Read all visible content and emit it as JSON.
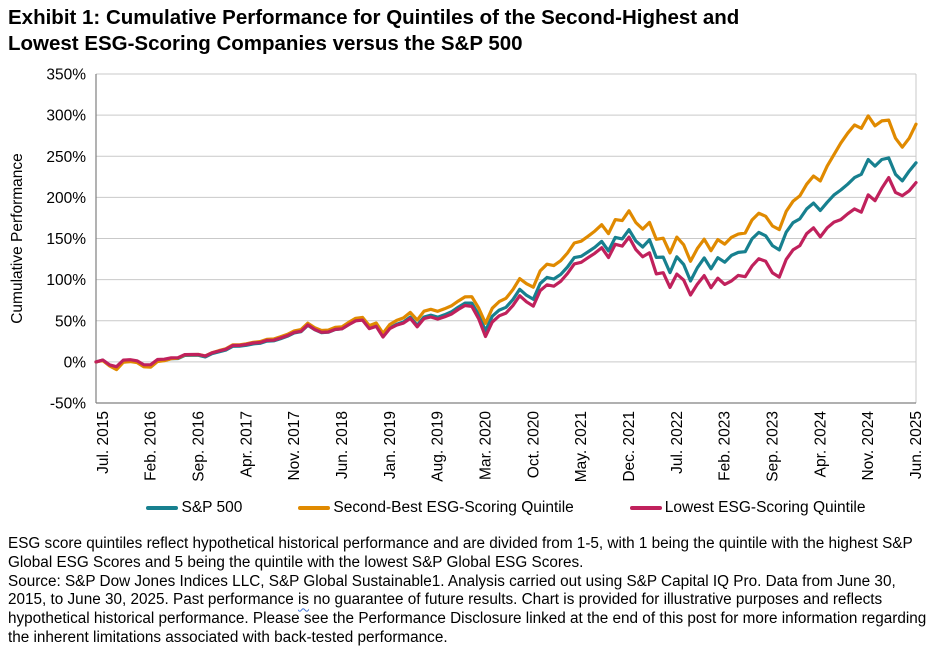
{
  "title": {
    "line1": "Exhibit 1: Cumulative Performance for Quintiles of the Second-Highest and",
    "line2": "Lowest ESG-Scoring Companies versus the S&P 500"
  },
  "chart_data": {
    "type": "line",
    "title": "Exhibit 1: Cumulative Performance for Quintiles of the Second-Highest and Lowest ESG-Scoring Companies versus the S&P 500",
    "xlabel": "",
    "ylabel": "Cumulative Performance",
    "ylim": [
      -50,
      350
    ],
    "y_tick_step": 50,
    "y_tick_labels": [
      "350%",
      "300%",
      "250%",
      "200%",
      "150%",
      "100%",
      "50%",
      "0%",
      "-50%"
    ],
    "x_frequency": "monthly",
    "x_range": "Jun. 2015 to Jun. 2025",
    "x_tick_month_indices": [
      1,
      8,
      15,
      22,
      29,
      36,
      43,
      50,
      57,
      64,
      71,
      78,
      85,
      92,
      99,
      106,
      113,
      120
    ],
    "x_tick_labels": [
      "Jul. 2015",
      "Feb. 2016",
      "Sep. 2016",
      "Apr. 2017",
      "Nov. 2017",
      "Jun. 2018",
      "Jan. 2019",
      "Aug. 2019",
      "Mar. 2020",
      "Oct. 2020",
      "May. 2021",
      "Dec. 2021",
      "Jul. 2022",
      "Feb. 2023",
      "Sep. 2023",
      "Apr. 2024",
      "Nov. 2024",
      "Jun. 2025"
    ],
    "grid": "horizontal",
    "legend_position": "bottom",
    "series": [
      {
        "name": "S&P 500",
        "color": "#17808F",
        "values": [
          0,
          2.1,
          -4,
          -6.4,
          1.5,
          1.8,
          0.2,
          -4.8,
          -4.9,
          1.5,
          1.9,
          3.8,
          4.1,
          7.9,
          8,
          8,
          6.1,
          10,
          12.2,
          14.3,
          18.9,
          19,
          20.2,
          21.9,
          22.6,
          25.2,
          25.6,
          28.2,
          31.1,
          35.2,
          36.7,
          44.5,
          39.1,
          35.6,
          36.1,
          39.4,
          40.2,
          45.4,
          50.2,
          51.1,
          40.8,
          43.6,
          30.7,
          41.2,
          45.7,
          48.5,
          54.4,
          44.5,
          54.6,
          56.8,
          54.3,
          57.2,
          60.7,
          66.5,
          71.5,
          71.5,
          57.4,
          37.9,
          55.5,
          63,
          66.3,
          75.6,
          88.2,
          81,
          76.1,
          95.3,
          102.7,
          100.7,
          106.3,
          115.4,
          126.8,
          128.4,
          133.7,
          139.3,
          146.5,
          134.9,
          151.3,
          149.5,
          160.7,
          147.1,
          139.7,
          148.6,
          127,
          127.4,
          108.5,
          127.7,
          118.4,
          98.3,
          114.4,
          126.4,
          113.2,
          126.7,
          121.2,
          129.4,
          133.1,
          134,
          149.5,
          157.4,
          153.3,
          141.2,
          136.1,
          157.6,
          169.2,
          173.8,
          186,
          193,
          184,
          194,
          203,
          209,
          216,
          224,
          228,
          246,
          238,
          246,
          248,
          228,
          220,
          232,
          242
        ]
      },
      {
        "name": "Second-Best ESG-Scoring Quintile",
        "color": "#E08A00",
        "values": [
          0,
          1.6,
          -5,
          -9.4,
          -0.5,
          0.3,
          -0.8,
          -6,
          -6.4,
          0.5,
          1.4,
          3.8,
          4.6,
          8.6,
          8.8,
          9,
          7.3,
          11.3,
          13.7,
          15.9,
          20.6,
          20.8,
          22,
          23.8,
          24.6,
          27.3,
          27.8,
          30.5,
          33.4,
          37.6,
          39.2,
          47,
          41.6,
          38.1,
          38.6,
          41.9,
          42.7,
          48.1,
          53,
          54.1,
          44.1,
          47.3,
          34.7,
          45.5,
          50.4,
          53.5,
          60.1,
          50.8,
          61.6,
          63.9,
          61.5,
          64.5,
          68,
          73.9,
          79,
          79.3,
          65.4,
          46.9,
          65.2,
          73.3,
          77.3,
          87.6,
          101.2,
          95,
          90.8,
          110.6,
          118.7,
          117,
          123,
          132.4,
          144.5,
          146.7,
          152.7,
          159,
          166.8,
          155.9,
          173,
          171.8,
          183.7,
          169.4,
          161.4,
          169.6,
          149,
          150.4,
          132.5,
          151.7,
          142.4,
          122.3,
          137.7,
          149.1,
          135.2,
          148.7,
          143.2,
          151.4,
          155.4,
          156.7,
          172.5,
          180.7,
          177,
          165.2,
          160.8,
          182.9,
          195.2,
          201.8,
          216,
          226,
          220,
          238,
          252,
          266,
          278,
          288,
          284,
          299,
          287,
          293,
          294,
          272,
          261,
          272,
          289
        ]
      },
      {
        "name": "Lowest ESG-Scoring Quintile",
        "color": "#C0215C",
        "values": [
          0,
          2.3,
          -3.7,
          -5.9,
          2.2,
          2.7,
          1.3,
          -3.5,
          -3.4,
          2.9,
          3.2,
          4.9,
          5.1,
          8.9,
          9,
          9,
          7.1,
          11,
          13.2,
          15.3,
          19.9,
          20,
          21.2,
          22.9,
          23.6,
          26.1,
          26.4,
          29,
          31.8,
          35.8,
          37.2,
          44.9,
          39.4,
          35.9,
          36.3,
          39.5,
          40.2,
          45.3,
          50,
          50.8,
          40.5,
          43.2,
          30.2,
          40.4,
          44.7,
          47.2,
          52.9,
          42.7,
          52.6,
          54.6,
          52,
          54.7,
          58,
          63.7,
          68.5,
          67.5,
          52.4,
          30.9,
          48.5,
          56,
          59.3,
          68.3,
          80.5,
          73,
          67.8,
          86.6,
          93.7,
          92,
          98,
          107.4,
          119.1,
          121.1,
          126.7,
          132,
          138.8,
          126.9,
          143,
          140.8,
          151.7,
          136.6,
          127.7,
          132.6,
          107,
          108.4,
          90.5,
          106.7,
          99.4,
          81.3,
          94.4,
          104.9,
          90.2,
          101.7,
          94.2,
          98.4,
          105.1,
          103.5,
          116.5,
          125.4,
          122.3,
          108.2,
          103.1,
          124.6,
          136.2,
          141.3,
          156,
          163,
          152,
          163,
          170,
          173,
          180,
          186,
          182,
          203,
          196,
          211,
          224,
          206,
          202,
          208,
          218
        ]
      }
    ]
  },
  "style": {
    "grid_color": "#C9C9C9",
    "axis_color": "#808080",
    "border_color": "#C9C9C9",
    "line_width": 3.2
  },
  "footnote": {
    "para1": "ESG score quintiles reflect hypothetical historical performance and are divided from 1-5, with 1 being the quintile with the highest S&P Global ESG Scores and 5 being the quintile with the lowest S&P Global ESG Scores.",
    "source_part1": "Source: S&P Dow Jones Indices LLC, S&P Global Sustainable1. Analysis carried out using S&P Capital IQ Pro. Data from June 30, 2015, to June 30, 2025. Past performance ",
    "underlined_word": "is",
    "source_part2": " no guarantee of future results. Chart is provided for illustrative purposes and reflects hypothetical historical performance. Please see the Performance Disclosure linked at the end of this post for more information regarding the inherent limitations associated with back-tested performance."
  }
}
